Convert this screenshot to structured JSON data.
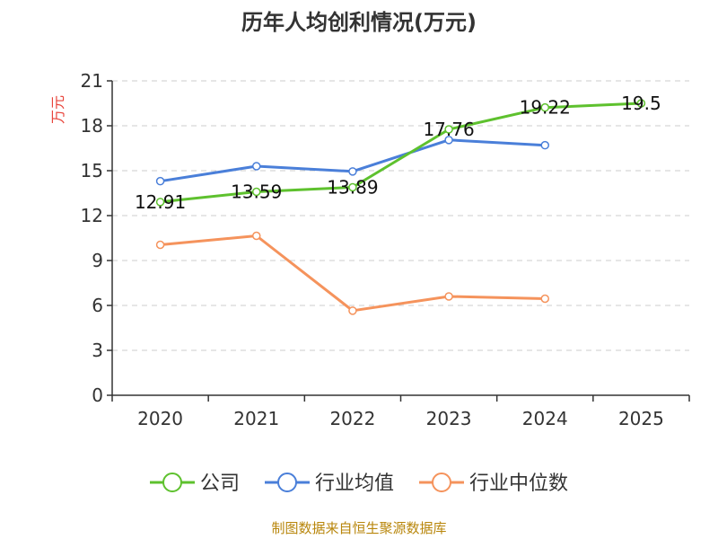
{
  "chart_data": {
    "type": "line",
    "title": "历年人均创利情况(万元)",
    "ylabel": "万元",
    "xlabel": "",
    "categories": [
      "2020",
      "2021",
      "2022",
      "2023",
      "2024",
      "2025"
    ],
    "ylim": [
      0,
      21
    ],
    "yticks": [
      0,
      3,
      6,
      9,
      12,
      15,
      18,
      21
    ],
    "grid": true,
    "legend_position": "bottom",
    "series": [
      {
        "name": "公司",
        "color": "#5ec12e",
        "values": [
          12.91,
          13.59,
          13.89,
          17.76,
          19.22,
          19.5
        ],
        "data_labels": [
          "12.91",
          "13.59",
          "13.89",
          "17.76",
          "19.22",
          "19.5"
        ]
      },
      {
        "name": "行业均值",
        "color": "#4a7fd9",
        "values": [
          14.3,
          15.3,
          14.95,
          17.05,
          16.7,
          null
        ]
      },
      {
        "name": "行业中位数",
        "color": "#f5935c",
        "values": [
          10.05,
          10.65,
          5.65,
          6.6,
          6.45,
          null
        ]
      }
    ],
    "source": "制图数据来自恒生聚源数据库"
  }
}
